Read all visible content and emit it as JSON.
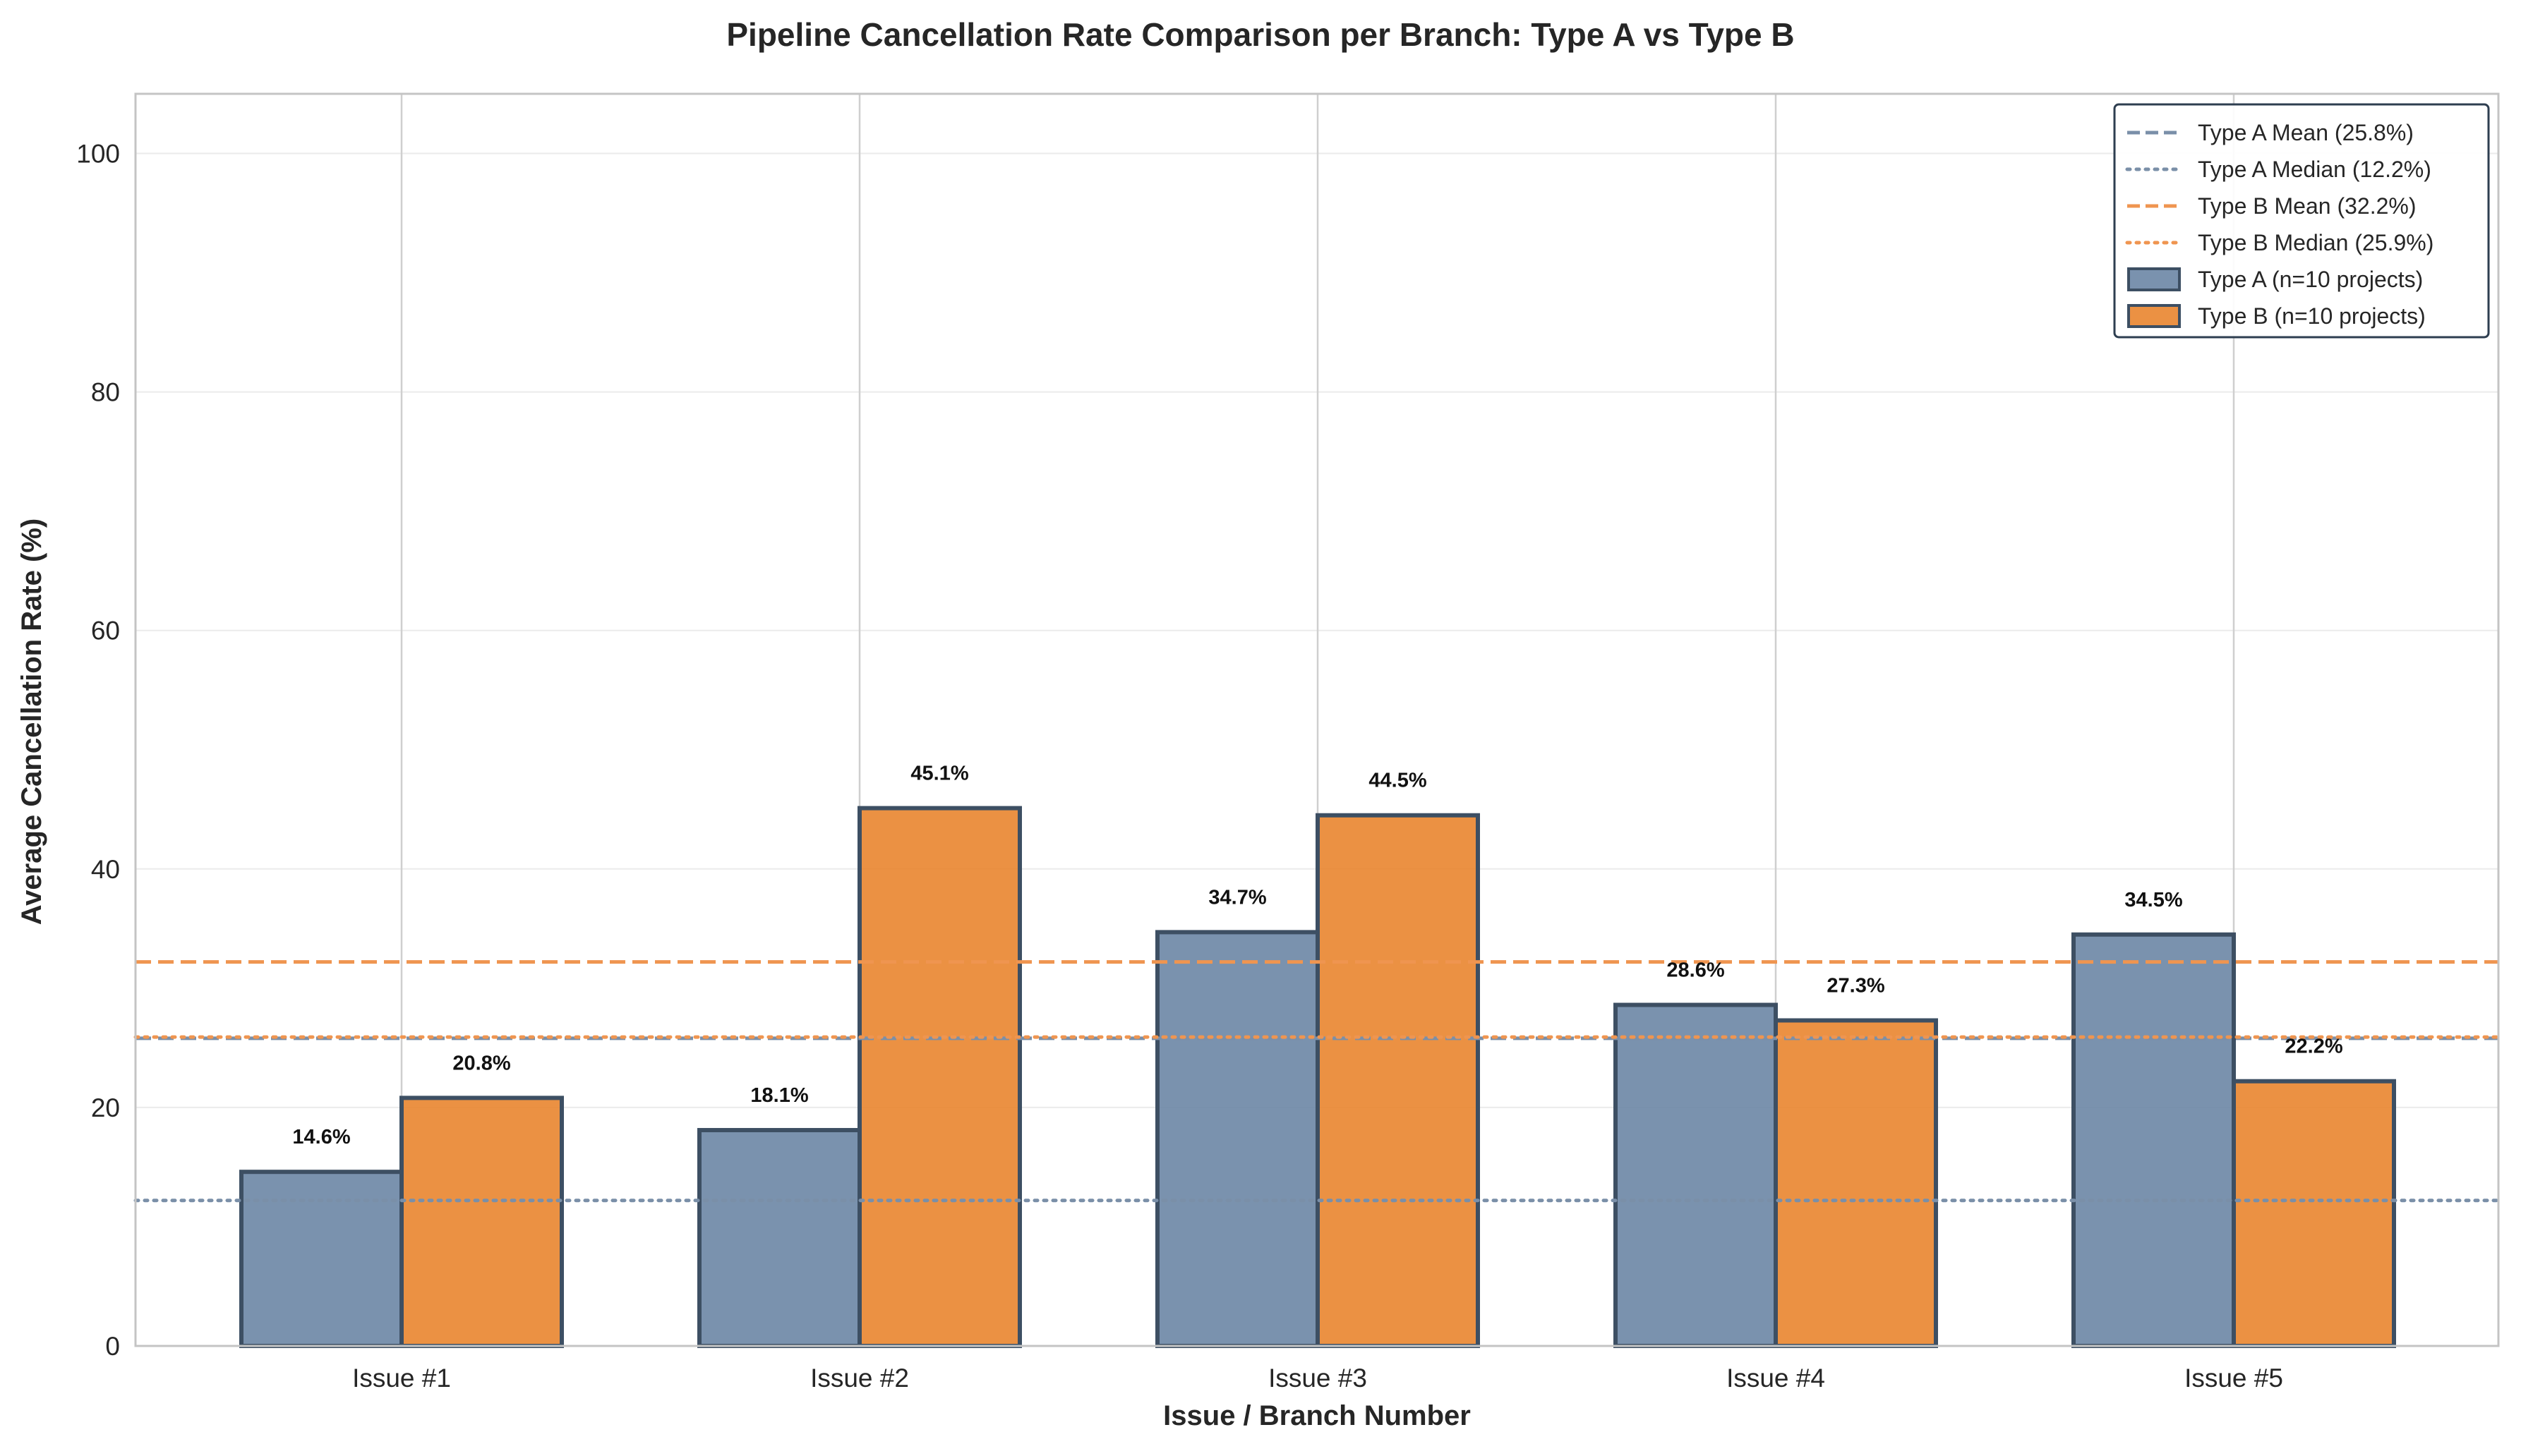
{
  "chart_data": {
    "type": "bar",
    "title": "Pipeline Cancellation Rate Comparison per Branch: Type A vs Type B",
    "xlabel": "Issue / Branch Number",
    "ylabel": "Average Cancellation Rate (%)",
    "ylim": [
      0,
      105
    ],
    "yticks": [
      "0",
      "20",
      "40",
      "60",
      "80",
      "100"
    ],
    "grid": true,
    "legend_position": "top-right",
    "categories": [
      "Issue #1",
      "Issue #2",
      "Issue #3",
      "Issue #4",
      "Issue #5"
    ],
    "series": [
      {
        "name": "Type A (n=10 projects)",
        "color": "#6b86a5",
        "edge_color": "#3d4f63",
        "values": [
          14.6,
          18.1,
          34.7,
          28.6,
          34.5
        ],
        "labels": [
          "14.6%",
          "18.1%",
          "34.7%",
          "28.6%",
          "34.5%"
        ]
      },
      {
        "name": "Type B (n=10 projects)",
        "color": "#e9852f",
        "edge_color": "#3d4f63",
        "values": [
          20.8,
          45.1,
          44.5,
          27.3,
          22.2
        ],
        "labels": [
          "20.8%",
          "45.1%",
          "44.5%",
          "27.3%",
          "22.2%"
        ]
      }
    ],
    "reference_lines": [
      {
        "name": "Type A Mean (25.8%)",
        "value": 25.8,
        "style": "dashed",
        "color": "#7a8fa8"
      },
      {
        "name": "Type A Median (12.2%)",
        "value": 12.2,
        "style": "dotted",
        "color": "#7a8fa8"
      },
      {
        "name": "Type B Mean (32.2%)",
        "value": 32.2,
        "style": "dashed",
        "color": "#ef9550"
      },
      {
        "name": "Type B Median (25.9%)",
        "value": 25.9,
        "style": "dotted",
        "color": "#ef9550"
      }
    ]
  }
}
